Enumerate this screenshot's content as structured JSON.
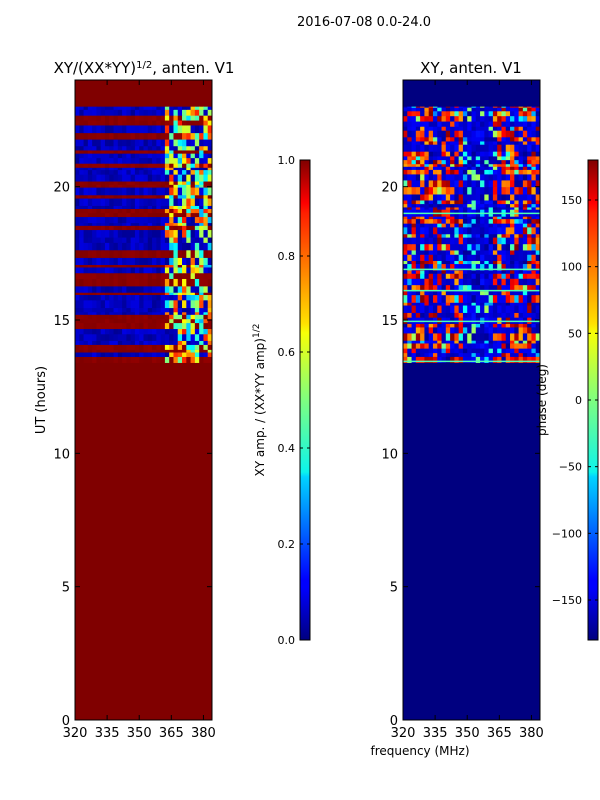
{
  "figure": {
    "suptitle": "2016-07-08 0.0-24.0",
    "shared_xlabel": "frequency (MHz)"
  },
  "chart_data": [
    {
      "type": "heatmap",
      "title": "XY/(XX*YY)",
      "title_superscript": "1/2",
      "title_suffix": ", anten. V1",
      "xlabel": "",
      "ylabel": "UT (hours)",
      "xlim": [
        320,
        384
      ],
      "ylim": [
        0,
        24
      ],
      "xticks": [
        320,
        335,
        350,
        365,
        380
      ],
      "yticks": [
        0,
        5,
        10,
        15,
        20
      ],
      "colorbar": {
        "label": "XY amp. / (XX*YY amp)",
        "label_superscript": "1/2",
        "range": [
          0.0,
          1.0
        ],
        "ticks": [
          "0.0",
          "0.2",
          "0.4",
          "0.6",
          "0.8",
          "1.0"
        ],
        "colormap": "jet"
      },
      "background_value": 1.0,
      "data_start_hours": 13.4,
      "data_end_hours": 23.0,
      "structure": "value 1.0 (saturated) outside data window; alternating blue (~0.05) and dark-red (~1.0) horizontal bands between 13.4 and 23.0 UT; cyan/yellow patches near 362-382 MHz"
    },
    {
      "type": "heatmap",
      "title": "XY, anten. V1",
      "xlabel": "frequency (MHz)",
      "ylabel": "",
      "xlim": [
        320,
        384
      ],
      "ylim": [
        0,
        24
      ],
      "xticks": [
        320,
        335,
        350,
        365,
        380
      ],
      "yticks": [
        0,
        5,
        10,
        15,
        20
      ],
      "colorbar": {
        "label": "phase (deg)",
        "range": [
          -180,
          180
        ],
        "ticks": [
          "−150",
          "−100",
          "−50",
          "0",
          "50",
          "100",
          "150"
        ],
        "colormap": "jet"
      },
      "background_value": -180,
      "data_start_hours": 13.4,
      "data_end_hours": 23.0,
      "structure": "dark-blue background; red/orange phase patches mostly between 320-347 MHz and 363-382 MHz; blue/cyan bands elsewhere within 13.4-23.0 UT"
    }
  ],
  "colors": {
    "jet_dark_red": "#800000",
    "jet_dark_blue": "#00007f",
    "axis": "#000000"
  }
}
